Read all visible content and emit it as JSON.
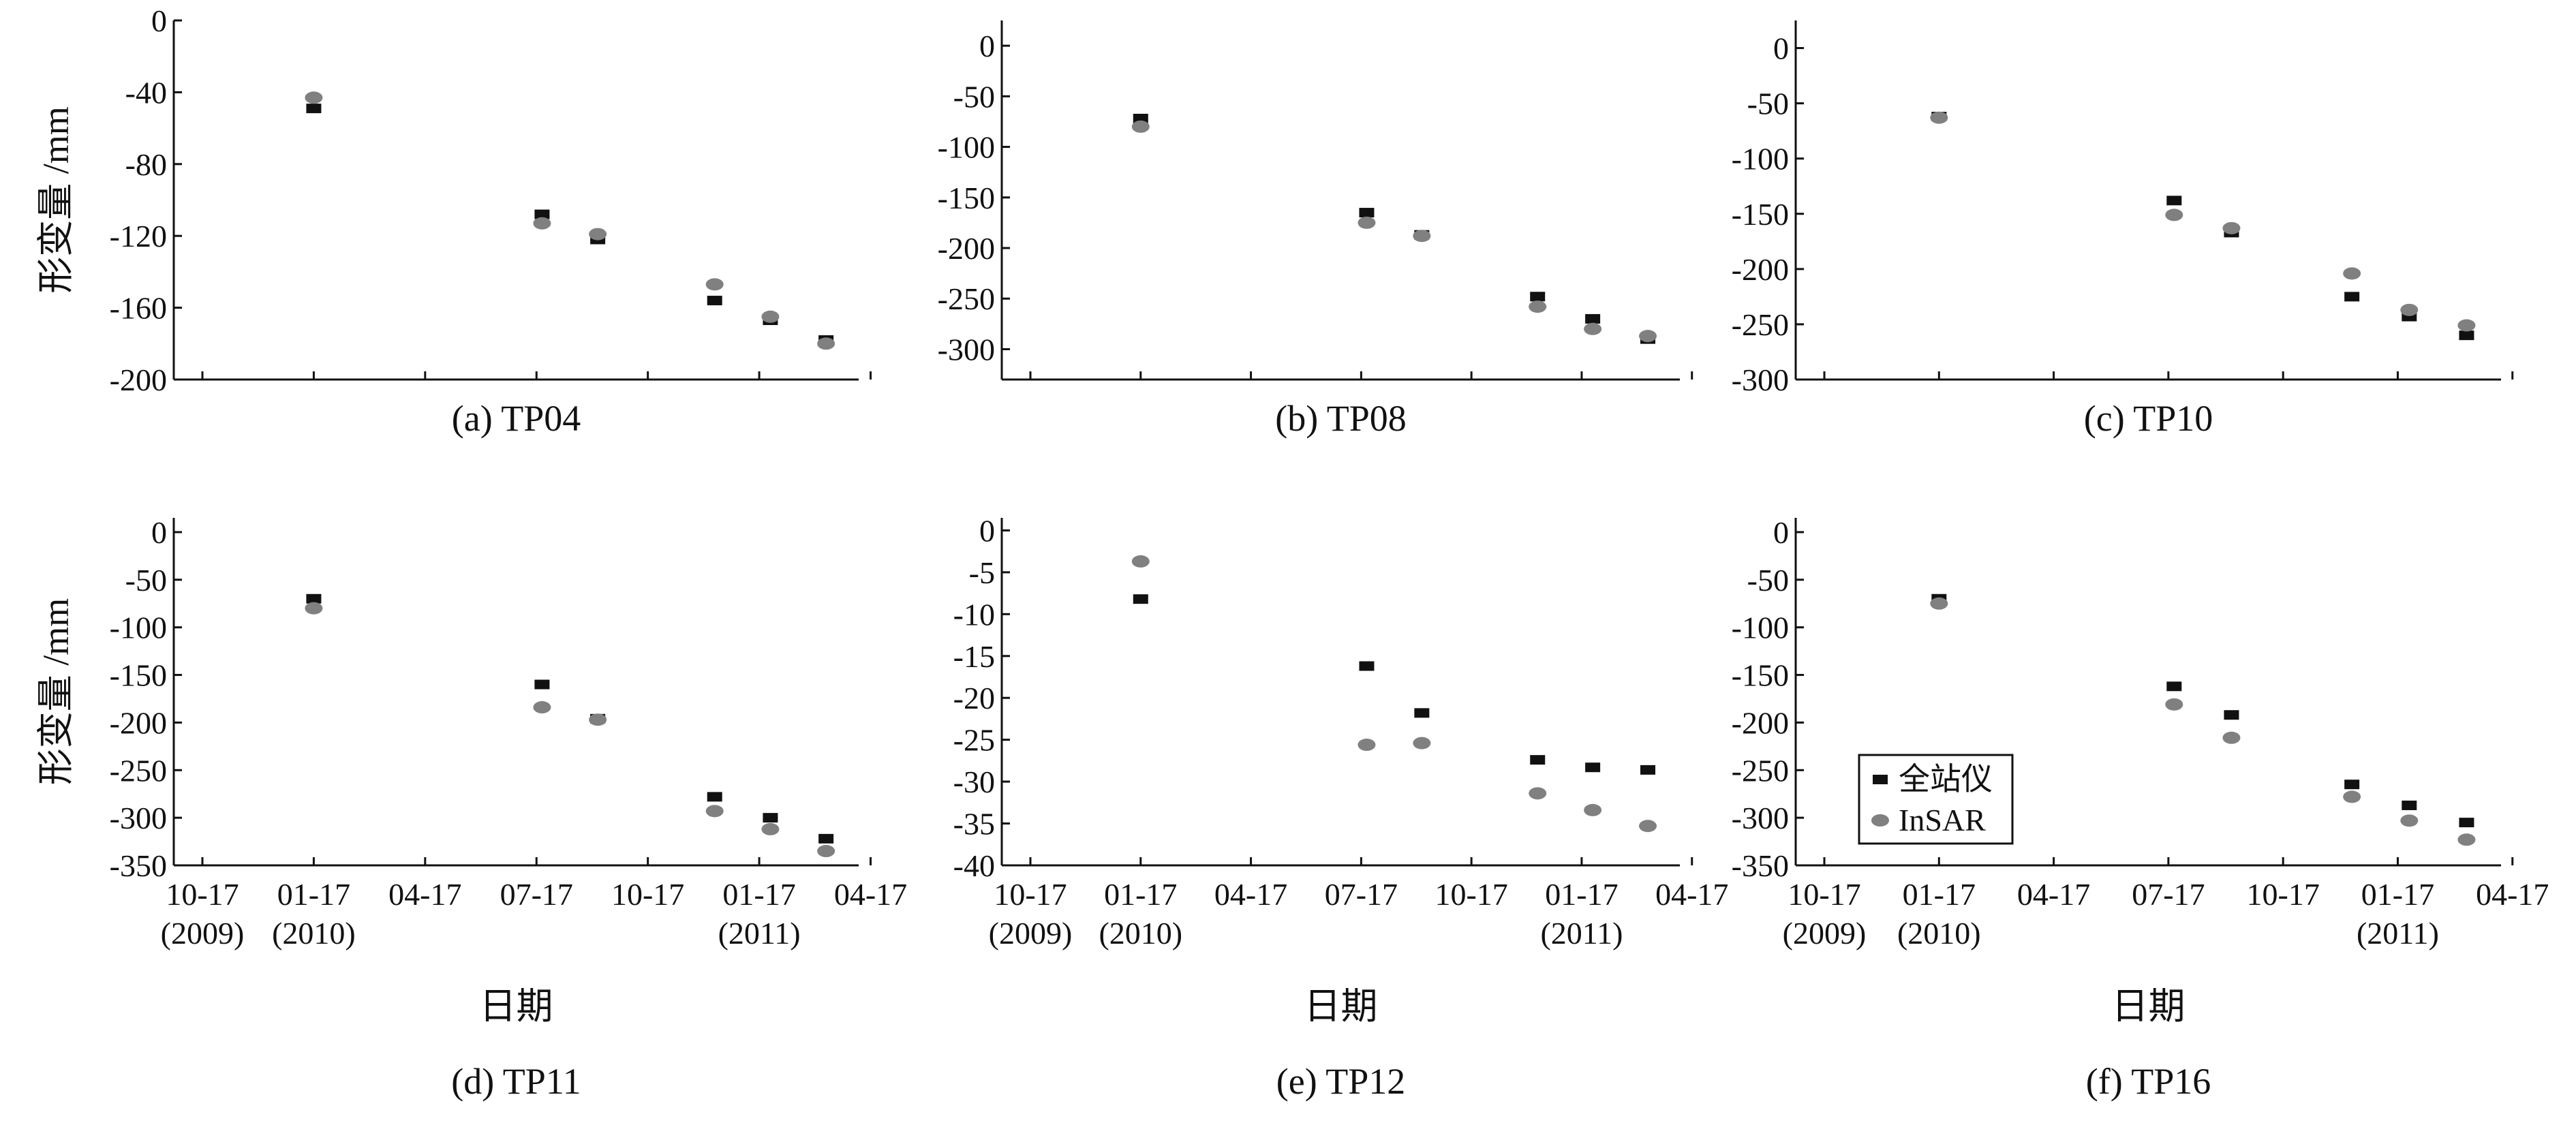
{
  "figure": {
    "ylabel": "形变量 /mm",
    "xlabel": "日期",
    "x_ticks": [
      "10-17",
      "01-17",
      "04-17",
      "07-17",
      "10-17",
      "01-17",
      "04-17"
    ],
    "year_labels": [
      {
        "tick": 0,
        "label": "(2009)"
      },
      {
        "tick": 1,
        "label": "(2010)"
      },
      {
        "tick": 5,
        "label": "(2011)"
      }
    ],
    "legend": {
      "items": [
        {
          "label": "全站仪",
          "marker": "square",
          "color": "#111111"
        },
        {
          "label": "InSAR",
          "marker": "circle",
          "color": "#808080"
        }
      ]
    }
  },
  "chart_data": [
    {
      "type": "scatter",
      "title": "(a) TP04",
      "ylim": [
        -200,
        0
      ],
      "yticks": [
        0,
        -40,
        -80,
        -120,
        -160,
        -200
      ],
      "series": [
        {
          "name": "全站仪",
          "values": [
            -49,
            -108,
            -122,
            -156,
            -167,
            -178
          ]
        },
        {
          "name": "InSAR",
          "values": [
            -43,
            -113,
            -119,
            -147,
            -165,
            -180
          ]
        }
      ]
    },
    {
      "type": "scatter",
      "title": "(b) TP08",
      "ylim": [
        -330,
        25
      ],
      "yticks": [
        0,
        -50,
        -100,
        -150,
        -200,
        -250,
        -300
      ],
      "series": [
        {
          "name": "全站仪",
          "values": [
            -72,
            -165,
            -187,
            -248,
            -270,
            -290
          ]
        },
        {
          "name": "InSAR",
          "values": [
            -80,
            -175,
            -188,
            -258,
            -280,
            -287
          ]
        }
      ]
    },
    {
      "type": "scatter",
      "title": "(c) TP10",
      "ylim": [
        -300,
        25
      ],
      "yticks": [
        0,
        -50,
        -100,
        -150,
        -200,
        -250,
        -300
      ],
      "series": [
        {
          "name": "全站仪",
          "values": [
            -62,
            -138,
            -167,
            -225,
            -243,
            -260
          ]
        },
        {
          "name": "InSAR",
          "values": [
            -63,
            -151,
            -163,
            -204,
            -237,
            -251
          ]
        }
      ]
    },
    {
      "type": "scatter",
      "title": "(d) TP11",
      "ylim": [
        -350,
        15
      ],
      "yticks": [
        0,
        -50,
        -100,
        -150,
        -200,
        -250,
        -300,
        -350
      ],
      "series": [
        {
          "name": "全站仪",
          "values": [
            -70,
            -160,
            -196,
            -278,
            -300,
            -322
          ]
        },
        {
          "name": "InSAR",
          "values": [
            -80,
            -184,
            -197,
            -293,
            -312,
            -335
          ]
        }
      ]
    },
    {
      "type": "scatter",
      "title": "(e) TP12",
      "ylim": [
        -40,
        1.5
      ],
      "yticks": [
        0,
        -5,
        -10,
        -15,
        -20,
        -25,
        -30,
        -35,
        -40
      ],
      "series": [
        {
          "name": "全站仪",
          "values": [
            -8.2,
            -16.2,
            -21.8,
            -27.4,
            -28.3,
            -28.6
          ]
        },
        {
          "name": "InSAR",
          "values": [
            -3.7,
            -25.6,
            -25.4,
            -31.4,
            -33.4,
            -35.3
          ]
        }
      ]
    },
    {
      "type": "scatter",
      "title": "(f) TP16",
      "ylim": [
        -350,
        15
      ],
      "yticks": [
        0,
        -50,
        -100,
        -150,
        -200,
        -250,
        -300,
        -350
      ],
      "series": [
        {
          "name": "全站仪",
          "values": [
            -70,
            -162,
            -192,
            -265,
            -287,
            -305
          ]
        },
        {
          "name": "InSAR",
          "values": [
            -75,
            -181,
            -216,
            -278,
            -303,
            -323
          ]
        }
      ]
    }
  ]
}
